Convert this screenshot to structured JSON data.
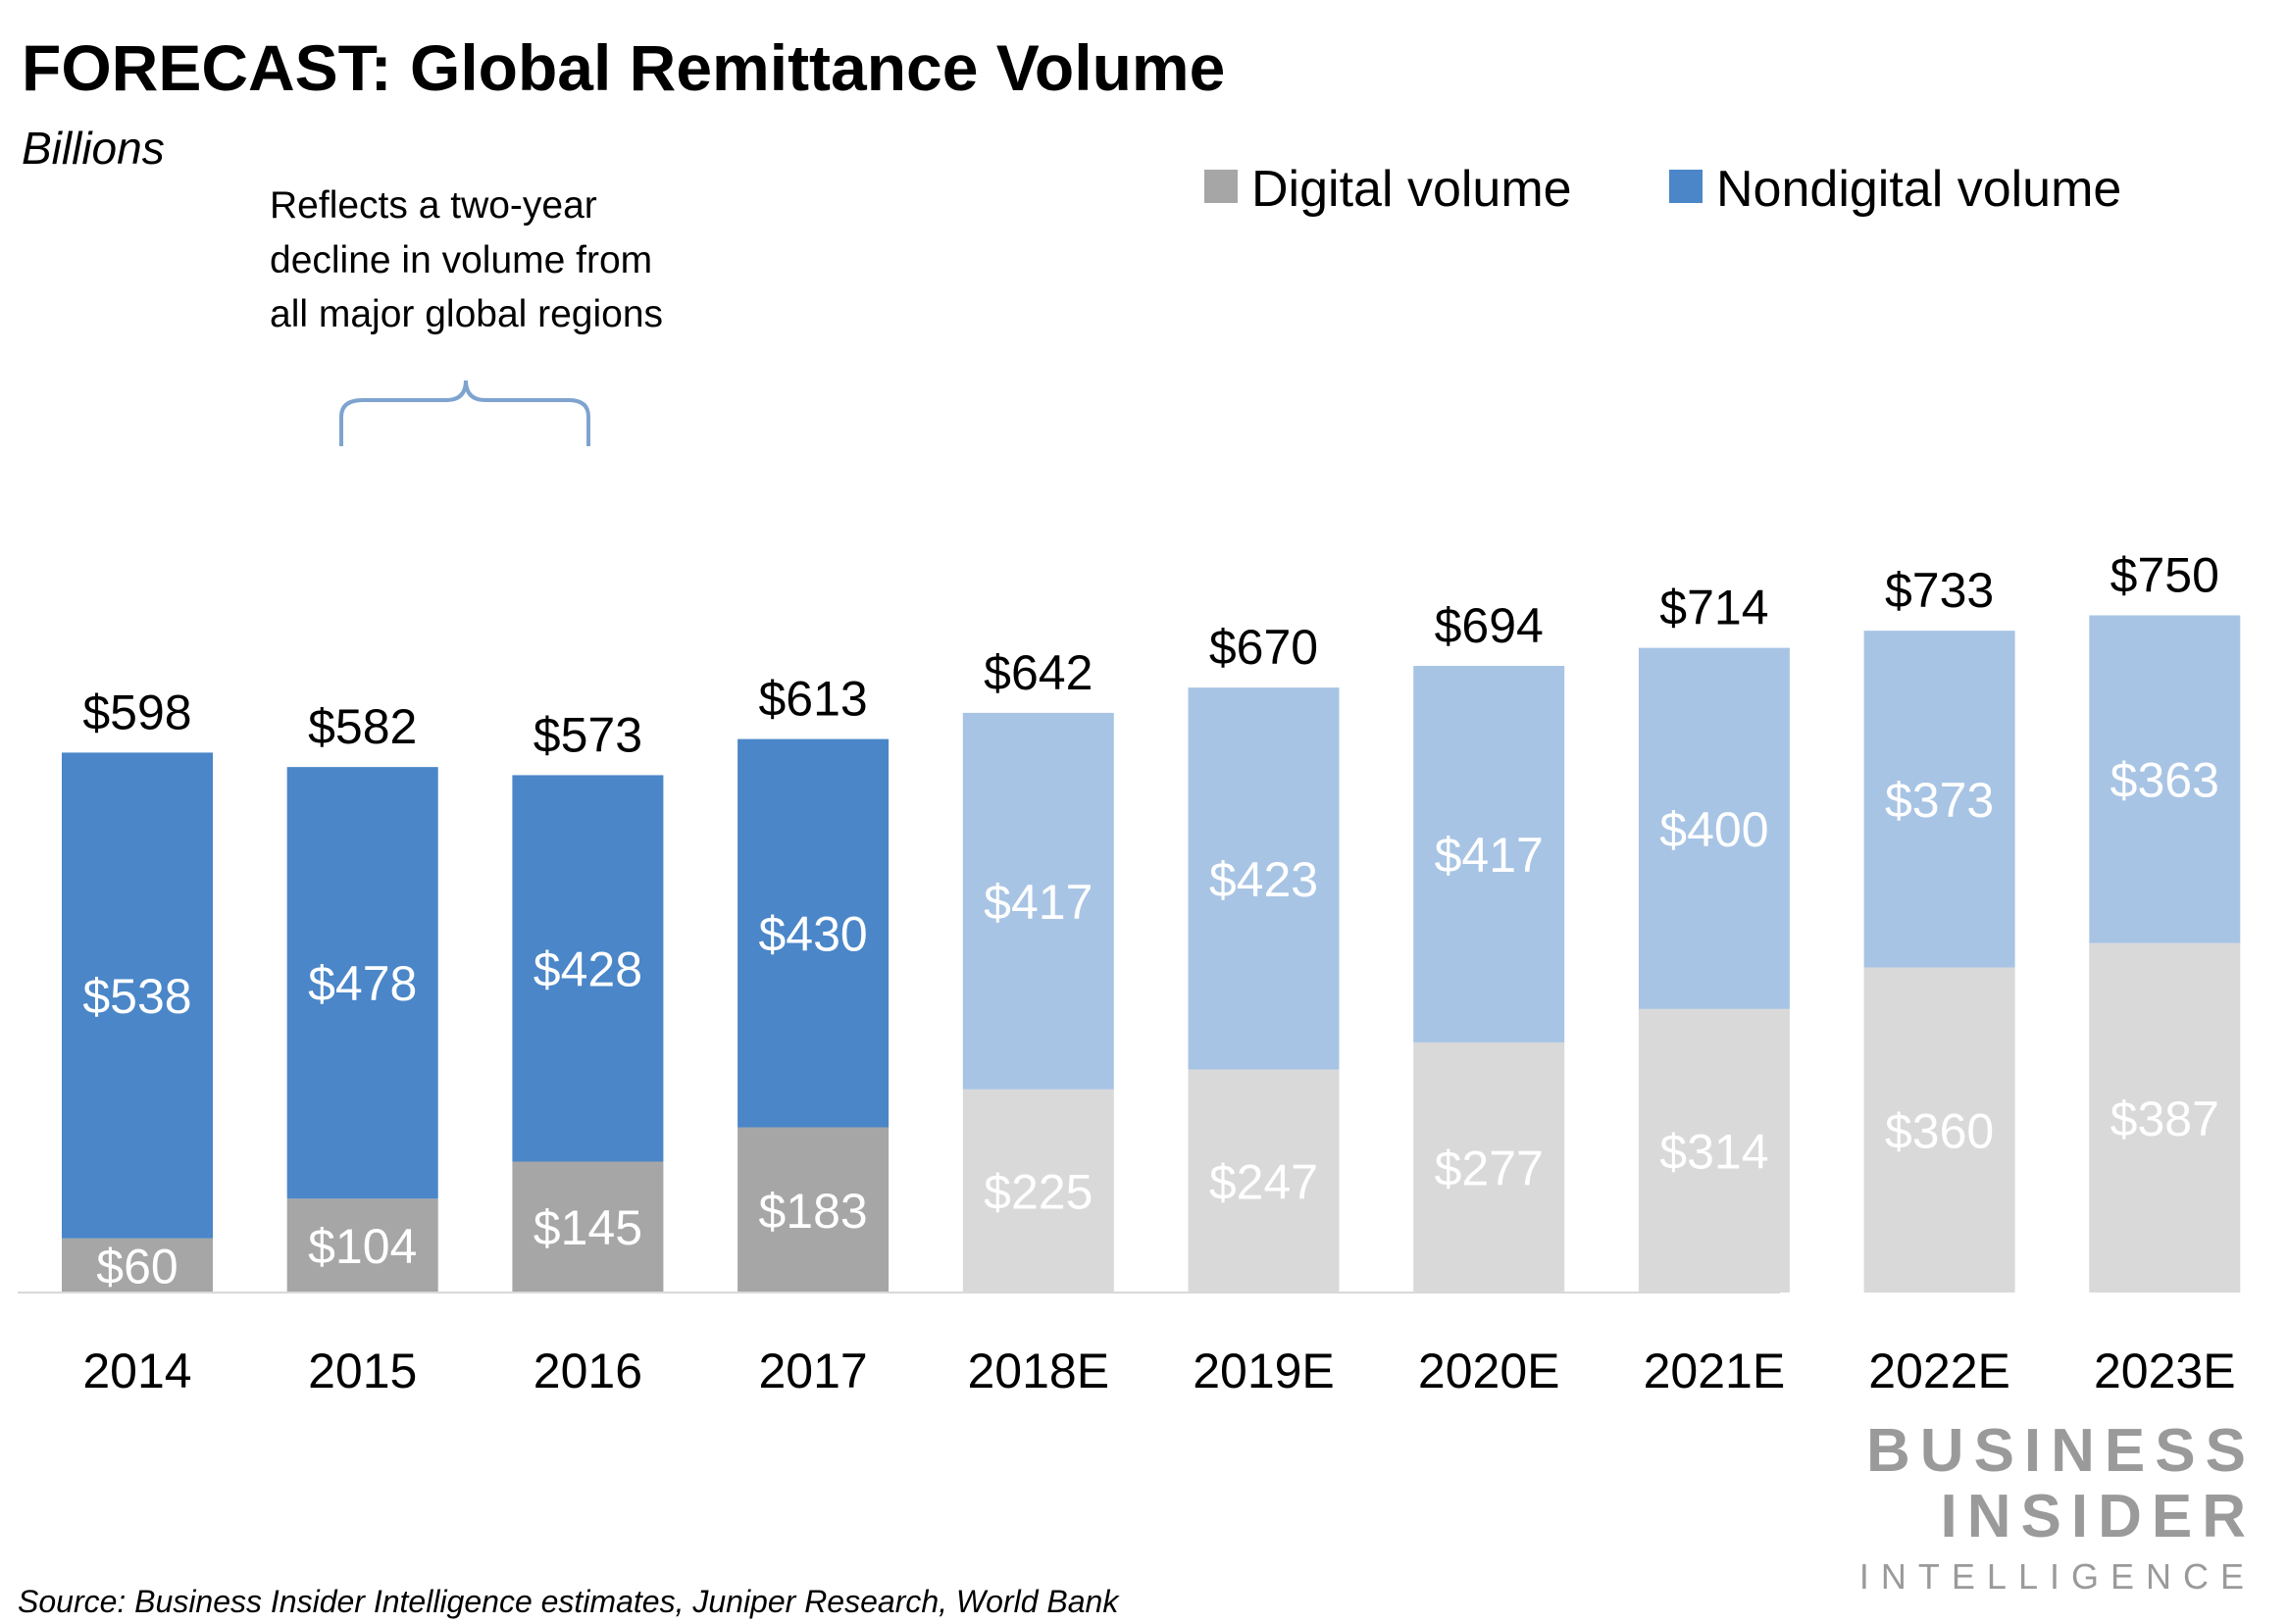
{
  "chart_data": {
    "type": "bar",
    "stacked": true,
    "title": "FORECAST: Global Remittance Volume",
    "subtitle": "Billions",
    "categories": [
      "2014",
      "2015",
      "2016",
      "2017",
      "2018E",
      "2019E",
      "2020E",
      "2021E",
      "2022E",
      "2023E"
    ],
    "series": [
      {
        "name": "Digital volume",
        "values": [
          60,
          104,
          145,
          183,
          225,
          247,
          277,
          314,
          360,
          387
        ],
        "labels": [
          "$60",
          "$104",
          "$145",
          "$183",
          "$225",
          "$247",
          "$277",
          "$314",
          "$360",
          "$387"
        ]
      },
      {
        "name": "Nondigital volume",
        "values": [
          538,
          478,
          428,
          430,
          417,
          423,
          417,
          400,
          373,
          363
        ],
        "labels": [
          "$538",
          "$478",
          "$428",
          "$430",
          "$417",
          "$423",
          "$417",
          "$400",
          "$373",
          "$363"
        ]
      }
    ],
    "totals": [
      598,
      582,
      573,
      613,
      642,
      670,
      694,
      714,
      733,
      750
    ],
    "total_labels": [
      "$598",
      "$582",
      "$573",
      "$613",
      "$642",
      "$670",
      "$694",
      "$714",
      "$733",
      "$750"
    ],
    "estimated": [
      false,
      false,
      false,
      false,
      true,
      true,
      true,
      true,
      true,
      true
    ],
    "ylim": [
      0,
      750
    ],
    "grid": false,
    "legend_position": "top-right",
    "colors": {
      "digital_actual": "#a6a6a6",
      "nondigital_actual": "#4a86c8",
      "digital_estimate": "#d9d9d9",
      "nondigital_estimate": "#a8c4e4"
    },
    "annotation": {
      "lines": [
        "Reflects a two-year",
        "decline in volume from",
        "all major global regions"
      ],
      "spans": [
        "2015",
        "2016"
      ]
    }
  },
  "source": "Source: Business Insider Intelligence estimates, Juniper Research, World Bank",
  "logo": {
    "line1": "BUSINESS",
    "line2": "INSIDER",
    "line3": "INTELLIGENCE"
  }
}
